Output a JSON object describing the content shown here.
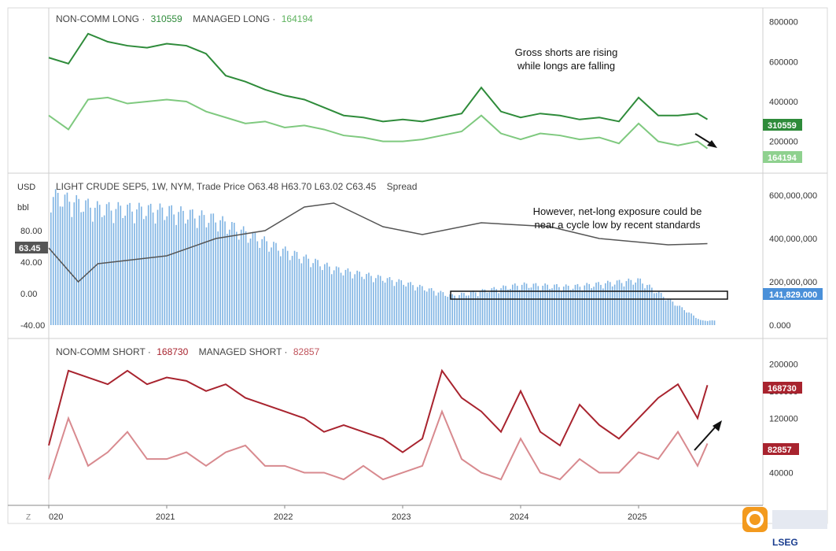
{
  "top_panel": {
    "legend": {
      "noncomm_long_label": "NON-COMM LONG",
      "noncomm_long_value": "310559",
      "managed_long_label": "MANAGED LONG",
      "managed_long_value": "164194"
    },
    "annotation_line1": "Gross shorts are rising",
    "annotation_line2": "while longs are falling",
    "yaxis": [
      "800000",
      "600000",
      "400000",
      "200000"
    ],
    "badge1": "310559",
    "badge2": "164194"
  },
  "middle_panel": {
    "title": "LIGHT CRUDE SEP5, 1W, NYM, Trade Price",
    "ohlc": "O63.48 H63.70 L63.02 C63.45",
    "spread": "Spread",
    "unit1": "USD",
    "unit2": "bbl",
    "left_axis": [
      "80.00",
      "40.00",
      "0.00",
      "-40.00"
    ],
    "price_badge": "63.45",
    "right_axis": [
      "600,000,000",
      "400,000,000",
      "200,000,000",
      "0.000"
    ],
    "right_badge": "141,829.000",
    "annotation_line1": "However, net-long exposure could be",
    "annotation_line2": "near a cycle low by recent standards"
  },
  "bottom_panel": {
    "legend": {
      "noncomm_short_label": "NON-COMM SHORT",
      "noncomm_short_value": "168730",
      "managed_short_label": "MANAGED SHORT",
      "managed_short_value": "82857"
    },
    "yaxis": [
      "200000",
      "160000",
      "120000",
      "40000"
    ],
    "badge1": "168730",
    "badge2": "82857"
  },
  "xaxis": [
    "020",
    "2021",
    "2022",
    "2023",
    "2024",
    "2025"
  ],
  "z_button": "Z",
  "logo_text": "LSEG",
  "colors": {
    "noncomm_long": "#2e8b3a",
    "managed_long": "#7fc97f",
    "noncomm_short": "#a8232e",
    "managed_short": "#d88a8f",
    "spread_bars": "#7eb3e3",
    "price": "#555555"
  },
  "chart_data": [
    {
      "type": "line",
      "series": [
        {
          "name": "NON-COMM LONG",
          "x": [
            "2020-01",
            "2020-03",
            "2020-05",
            "2020-07",
            "2020-09",
            "2020-11",
            "2021-01",
            "2021-03",
            "2021-05",
            "2021-07",
            "2021-09",
            "2021-11",
            "2022-01",
            "2022-03",
            "2022-05",
            "2022-07",
            "2022-09",
            "2022-11",
            "2023-01",
            "2023-03",
            "2023-05",
            "2023-07",
            "2023-09",
            "2023-11",
            "2024-01",
            "2024-03",
            "2024-05",
            "2024-07",
            "2024-09",
            "2024-11",
            "2025-01",
            "2025-03",
            "2025-05",
            "2025-07",
            "2025-08"
          ],
          "values": [
            620000,
            590000,
            740000,
            700000,
            680000,
            670000,
            690000,
            680000,
            640000,
            530000,
            500000,
            460000,
            430000,
            410000,
            370000,
            330000,
            320000,
            300000,
            310000,
            300000,
            320000,
            340000,
            470000,
            350000,
            320000,
            340000,
            330000,
            310000,
            320000,
            300000,
            420000,
            330000,
            330000,
            340000,
            310559
          ]
        },
        {
          "name": "MANAGED LONG",
          "x": [
            "2020-01",
            "2020-03",
            "2020-05",
            "2020-07",
            "2020-09",
            "2020-11",
            "2021-01",
            "2021-03",
            "2021-05",
            "2021-07",
            "2021-09",
            "2021-11",
            "2022-01",
            "2022-03",
            "2022-05",
            "2022-07",
            "2022-09",
            "2022-11",
            "2023-01",
            "2023-03",
            "2023-05",
            "2023-07",
            "2023-09",
            "2023-11",
            "2024-01",
            "2024-03",
            "2024-05",
            "2024-07",
            "2024-09",
            "2024-11",
            "2025-01",
            "2025-03",
            "2025-05",
            "2025-07",
            "2025-08"
          ],
          "values": [
            330000,
            260000,
            410000,
            420000,
            390000,
            400000,
            410000,
            400000,
            350000,
            320000,
            290000,
            300000,
            270000,
            280000,
            260000,
            230000,
            220000,
            200000,
            200000,
            210000,
            230000,
            250000,
            330000,
            240000,
            210000,
            240000,
            230000,
            210000,
            220000,
            190000,
            290000,
            200000,
            180000,
            200000,
            164194
          ]
        }
      ],
      "ylim": [
        100000,
        850000
      ]
    },
    {
      "type": "bar",
      "series": [
        {
          "name": "Spread",
          "x": [
            "2020-01",
            "2020-06",
            "2021-01",
            "2021-06",
            "2022-01",
            "2022-06",
            "2023-01",
            "2023-06",
            "2024-01",
            "2024-06",
            "2025-01",
            "2025-08"
          ],
          "values": [
            580000000,
            520000000,
            510000000,
            470000000,
            330000000,
            250000000,
            190000000,
            130000000,
            180000000,
            170000000,
            200000000,
            141829
          ]
        },
        {
          "name": "LIGHT CRUDE SEP5",
          "x": [
            "2020-01",
            "2020-04",
            "2020-06",
            "2021-01",
            "2021-06",
            "2021-11",
            "2022-03",
            "2022-06",
            "2022-11",
            "2023-03",
            "2023-09",
            "2024-04",
            "2024-09",
            "2025-04",
            "2025-08"
          ],
          "values": [
            58,
            15,
            38,
            48,
            70,
            80,
            110,
            115,
            85,
            75,
            90,
            85,
            70,
            62,
            63.45
          ]
        }
      ],
      "ylim": [
        -40,
        120
      ]
    },
    {
      "type": "line",
      "series": [
        {
          "name": "NON-COMM SHORT",
          "x": [
            "2020-01",
            "2020-03",
            "2020-05",
            "2020-07",
            "2020-09",
            "2020-11",
            "2021-01",
            "2021-03",
            "2021-05",
            "2021-07",
            "2021-09",
            "2021-11",
            "2022-01",
            "2022-03",
            "2022-05",
            "2022-07",
            "2022-09",
            "2022-11",
            "2023-01",
            "2023-03",
            "2023-05",
            "2023-07",
            "2023-09",
            "2023-11",
            "2024-01",
            "2024-03",
            "2024-05",
            "2024-07",
            "2024-09",
            "2024-11",
            "2025-01",
            "2025-03",
            "2025-05",
            "2025-07",
            "2025-08"
          ],
          "values": [
            80000,
            190000,
            180000,
            170000,
            190000,
            170000,
            180000,
            175000,
            160000,
            170000,
            150000,
            140000,
            130000,
            120000,
            100000,
            110000,
            100000,
            90000,
            70000,
            90000,
            190000,
            150000,
            130000,
            100000,
            160000,
            100000,
            80000,
            140000,
            110000,
            90000,
            120000,
            150000,
            170000,
            120000,
            168730
          ]
        },
        {
          "name": "MANAGED SHORT",
          "x": [
            "2020-01",
            "2020-03",
            "2020-05",
            "2020-07",
            "2020-09",
            "2020-11",
            "2021-01",
            "2021-03",
            "2021-05",
            "2021-07",
            "2021-09",
            "2021-11",
            "2022-01",
            "2022-03",
            "2022-05",
            "2022-07",
            "2022-09",
            "2022-11",
            "2023-01",
            "2023-03",
            "2023-05",
            "2023-07",
            "2023-09",
            "2023-11",
            "2024-01",
            "2024-03",
            "2024-05",
            "2024-07",
            "2024-09",
            "2024-11",
            "2025-01",
            "2025-03",
            "2025-05",
            "2025-07",
            "2025-08"
          ],
          "values": [
            30000,
            120000,
            50000,
            70000,
            100000,
            60000,
            60000,
            70000,
            50000,
            70000,
            80000,
            50000,
            50000,
            40000,
            40000,
            30000,
            50000,
            30000,
            40000,
            50000,
            130000,
            60000,
            40000,
            30000,
            90000,
            40000,
            30000,
            60000,
            40000,
            40000,
            70000,
            60000,
            100000,
            50000,
            82857
          ]
        }
      ],
      "ylim": [
        0,
        220000
      ]
    }
  ]
}
